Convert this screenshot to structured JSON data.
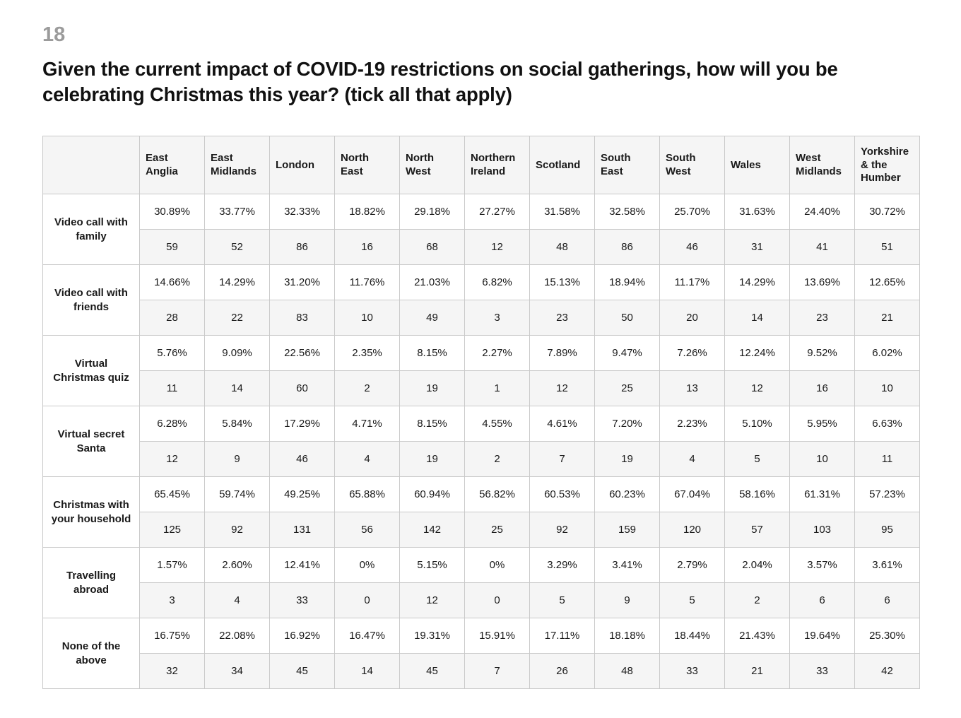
{
  "page": {
    "number": "18",
    "title": "Given the current impact of COVID-19 restrictions on social gatherings, how will you be celebrating Christmas this year? (tick all that apply)"
  },
  "colors": {
    "page_background": "#ffffff",
    "header_and_count_row_background": "#f5f5f5",
    "cell_border": "#c9c9c9",
    "page_number_gray": "#9b9b9b",
    "text": "#111111"
  },
  "chart_data": {
    "type": "table",
    "title": "Given the current impact of COVID-19 restrictions on social gatherings, how will you be celebrating Christmas this year? (tick all that apply)",
    "columns": [
      "East Anglia",
      "East Midlands",
      "London",
      "North East",
      "North West",
      "Northern Ireland",
      "Scotland",
      "South East",
      "South West",
      "Wales",
      "West Midlands",
      "Yorkshire & the Humber"
    ],
    "row_value_format": "percent of respondents (top sub-row) and respondent count (bottom sub-row)",
    "rows": [
      {
        "label": "Video call with family",
        "percent": [
          "30.89%",
          "33.77%",
          "32.33%",
          "18.82%",
          "29.18%",
          "27.27%",
          "31.58%",
          "32.58%",
          "25.70%",
          "31.63%",
          "24.40%",
          "30.72%"
        ],
        "count": [
          59,
          52,
          86,
          16,
          68,
          12,
          48,
          86,
          46,
          31,
          41,
          51
        ]
      },
      {
        "label": "Video call with friends",
        "percent": [
          "14.66%",
          "14.29%",
          "31.20%",
          "11.76%",
          "21.03%",
          "6.82%",
          "15.13%",
          "18.94%",
          "11.17%",
          "14.29%",
          "13.69%",
          "12.65%"
        ],
        "count": [
          28,
          22,
          83,
          10,
          49,
          3,
          23,
          50,
          20,
          14,
          23,
          21
        ]
      },
      {
        "label": "Virtual Christmas quiz",
        "percent": [
          "5.76%",
          "9.09%",
          "22.56%",
          "2.35%",
          "8.15%",
          "2.27%",
          "7.89%",
          "9.47%",
          "7.26%",
          "12.24%",
          "9.52%",
          "6.02%"
        ],
        "count": [
          11,
          14,
          60,
          2,
          19,
          1,
          12,
          25,
          13,
          12,
          16,
          10
        ]
      },
      {
        "label": "Virtual secret Santa",
        "percent": [
          "6.28%",
          "5.84%",
          "17.29%",
          "4.71%",
          "8.15%",
          "4.55%",
          "4.61%",
          "7.20%",
          "2.23%",
          "5.10%",
          "5.95%",
          "6.63%"
        ],
        "count": [
          12,
          9,
          46,
          4,
          19,
          2,
          7,
          19,
          4,
          5,
          10,
          11
        ]
      },
      {
        "label": "Christmas with your household",
        "percent": [
          "65.45%",
          "59.74%",
          "49.25%",
          "65.88%",
          "60.94%",
          "56.82%",
          "60.53%",
          "60.23%",
          "67.04%",
          "58.16%",
          "61.31%",
          "57.23%"
        ],
        "count": [
          125,
          92,
          131,
          56,
          142,
          25,
          92,
          159,
          120,
          57,
          103,
          95
        ]
      },
      {
        "label": "Travelling abroad",
        "percent": [
          "1.57%",
          "2.60%",
          "12.41%",
          "0%",
          "5.15%",
          "0%",
          "3.29%",
          "3.41%",
          "2.79%",
          "2.04%",
          "3.57%",
          "3.61%"
        ],
        "count": [
          3,
          4,
          33,
          0,
          12,
          0,
          5,
          9,
          5,
          2,
          6,
          6
        ]
      },
      {
        "label": "None of the above",
        "percent": [
          "16.75%",
          "22.08%",
          "16.92%",
          "16.47%",
          "19.31%",
          "15.91%",
          "17.11%",
          "18.18%",
          "18.44%",
          "21.43%",
          "19.64%",
          "25.30%"
        ],
        "count": [
          32,
          34,
          45,
          14,
          45,
          7,
          26,
          48,
          33,
          21,
          33,
          42
        ]
      }
    ]
  }
}
